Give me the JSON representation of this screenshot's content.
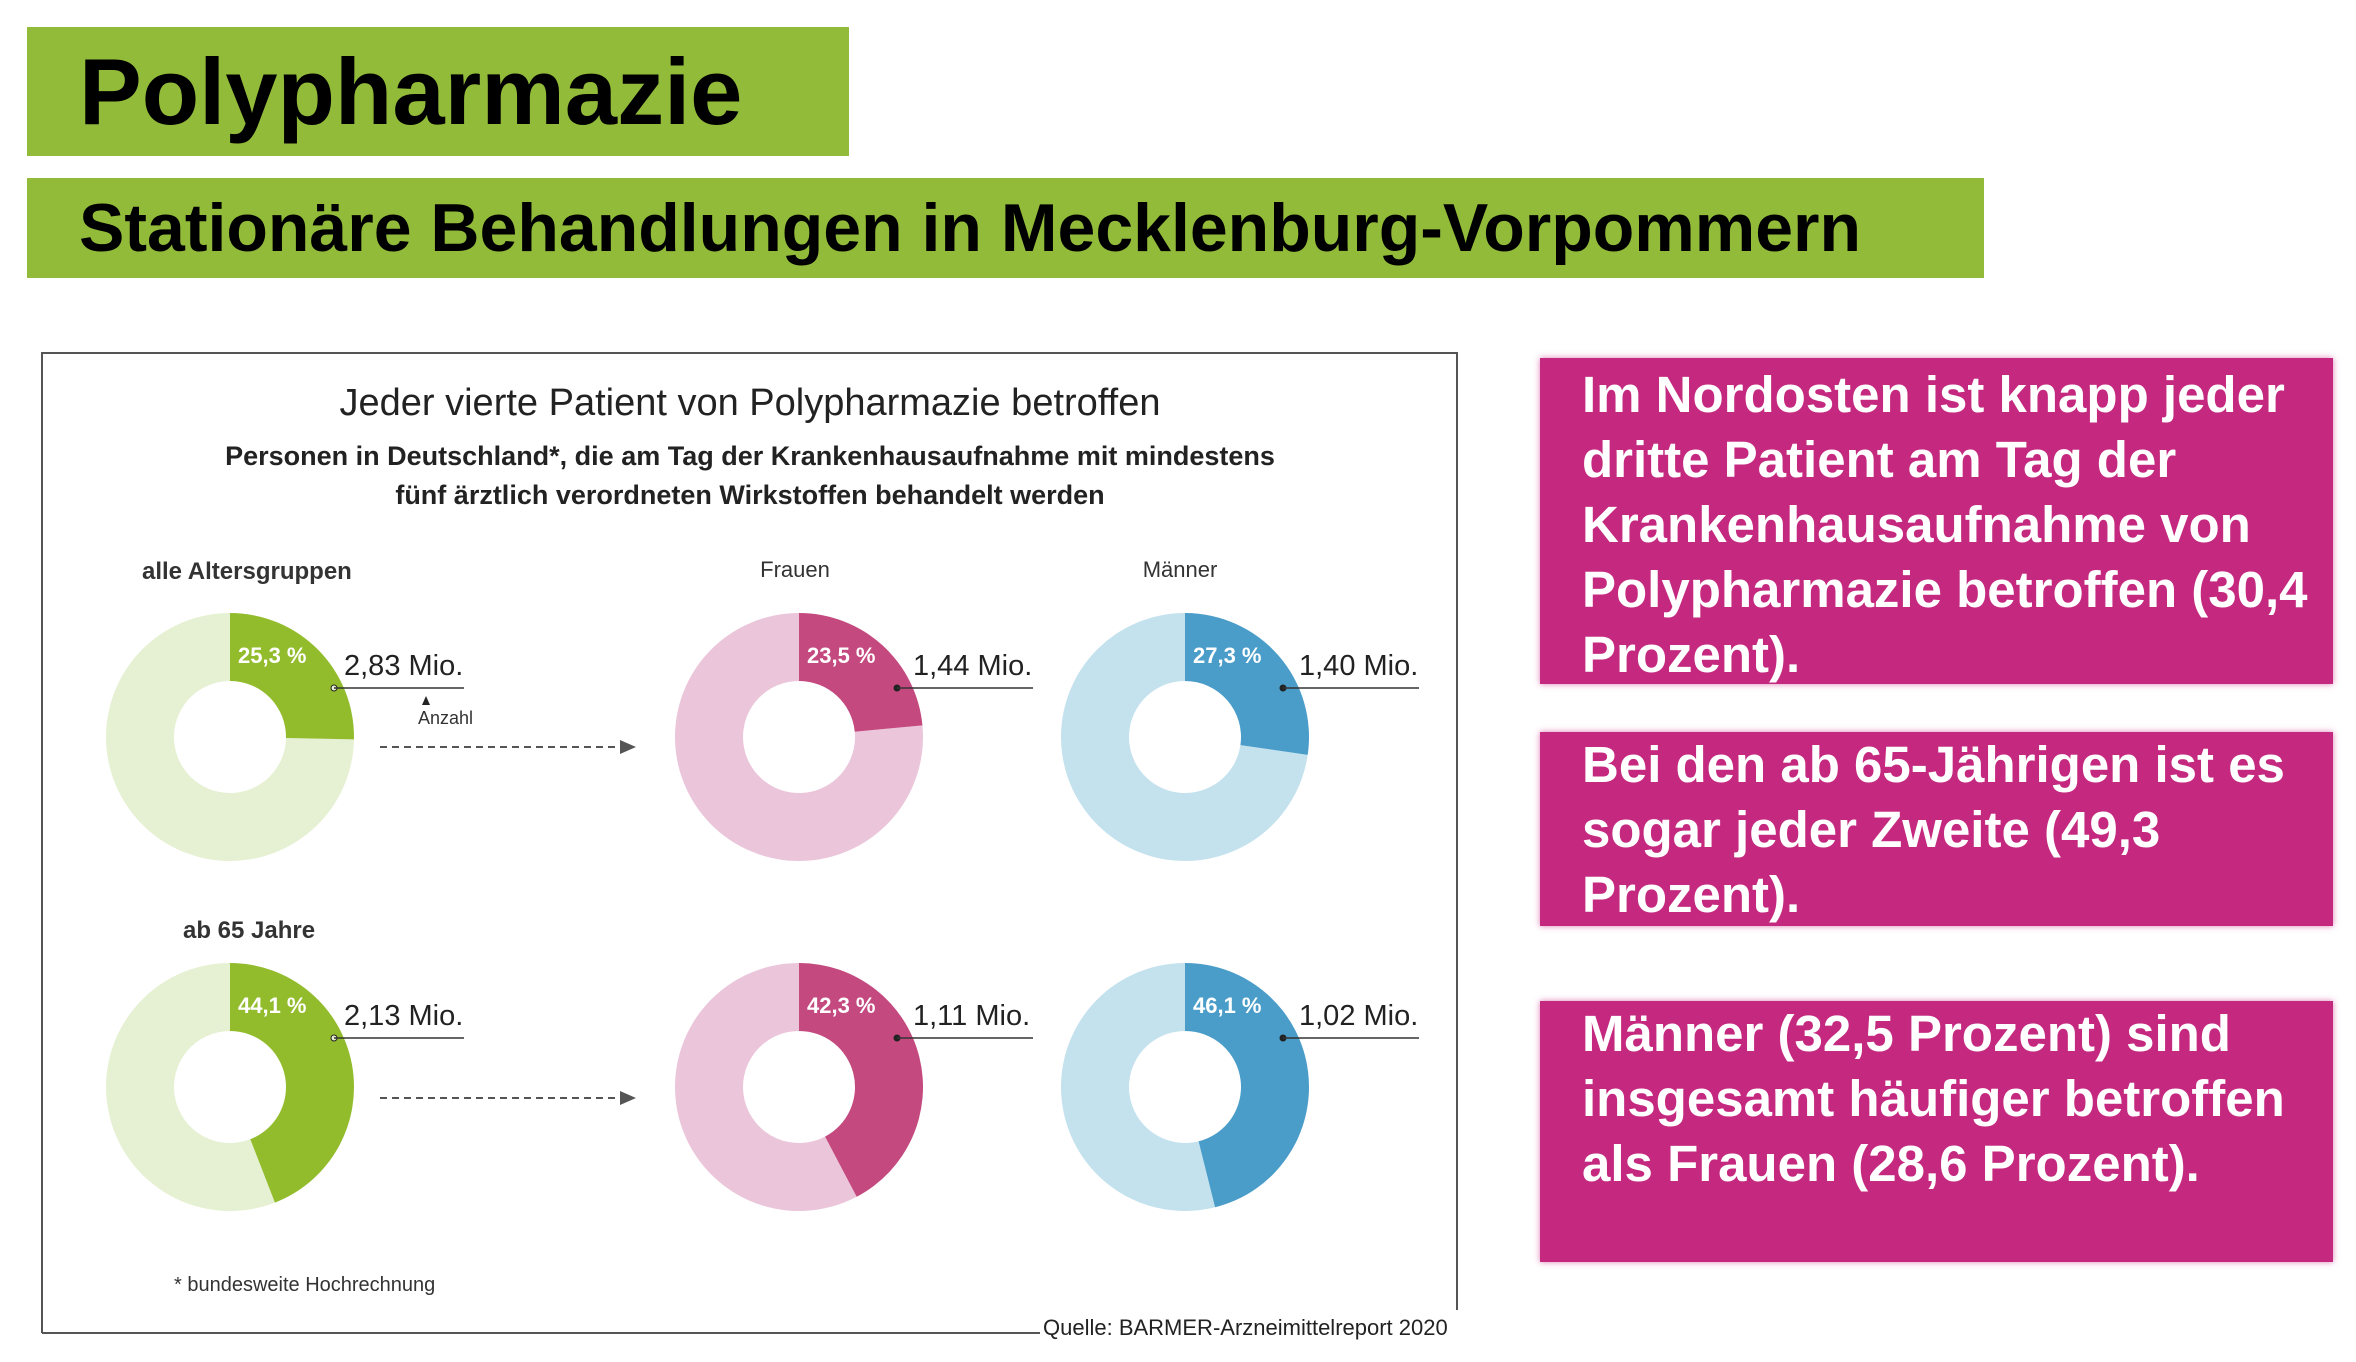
{
  "header": {
    "title": "Polypharmazie",
    "subtitle": "Stationäre Behandlungen in Mecklenburg-Vorpommern"
  },
  "notes": [
    "Im Nordosten ist knapp jeder dritte Patient am Tag der Krankenhausaufnahme von Polypharmazie betroffen (30,4 Prozent).",
    "Bei den ab 65-Jährigen ist es sogar jeder Zweite (49,3 Prozent).",
    "Männer (32,5 Prozent) sind insgesamt häufiger betroffen als Frauen (28,6 Prozent)."
  ],
  "chart_data": {
    "type": "pie",
    "title": "Jeder vierte Patient von Polypharmazie betroffen",
    "subtitle_lines": [
      "Personen in Deutschland*, die am Tag der Krankenhausaufnahme mit mindestens",
      "fünf ärztlich verordneten Wirkstoffen behandelt werden"
    ],
    "column_labels": [
      "alle Altersgruppen",
      "Frauen",
      "Männer"
    ],
    "row_labels": [
      "",
      "ab 65 Jahre"
    ],
    "anzahl_label": "Anzahl",
    "footnote": "* bundesweite Hochrechnung",
    "source": "Quelle: BARMER-Arzneimittelreport 2020",
    "colors": {
      "all": [
        "#93bc2d",
        "#e6f1d3"
      ],
      "women": [
        "#c4497f",
        "#ebc6da"
      ],
      "men": [
        "#4a9cc9",
        "#c3e2ee"
      ]
    },
    "rows": [
      [
        {
          "group": "all",
          "percent": 25.3,
          "percent_label": "25,3 %",
          "count_label": "2,83 Mio."
        },
        {
          "group": "women",
          "percent": 23.5,
          "percent_label": "23,5 %",
          "count_label": "1,44 Mio."
        },
        {
          "group": "men",
          "percent": 27.3,
          "percent_label": "27,3 %",
          "count_label": "1,40 Mio."
        }
      ],
      [
        {
          "group": "all",
          "percent": 44.1,
          "percent_label": "44,1 %",
          "count_label": "2,13 Mio."
        },
        {
          "group": "women",
          "percent": 42.3,
          "percent_label": "42,3 %",
          "count_label": "1,11 Mio."
        },
        {
          "group": "men",
          "percent": 46.1,
          "percent_label": "46,1 %",
          "count_label": "1,02 Mio."
        }
      ]
    ]
  }
}
